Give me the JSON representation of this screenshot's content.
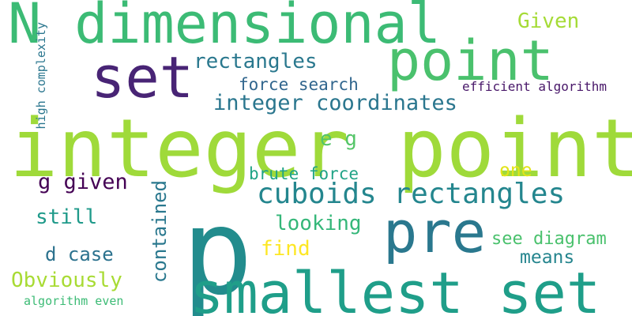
{
  "words": [
    {
      "text": "integer point",
      "color": "#9fda3a"
    },
    {
      "text": "N dimensional",
      "color": "#3cbb75"
    },
    {
      "text": "point",
      "color": "#4ac16d"
    },
    {
      "text": "set",
      "color": "#482475"
    },
    {
      "text": "p",
      "color": "#228c8d"
    },
    {
      "text": "smallest set",
      "color": "#1f9e89"
    },
    {
      "text": "pre",
      "color": "#2a788e"
    },
    {
      "text": "cuboids rectangles",
      "color": "#24868e"
    },
    {
      "text": "integer coordinates",
      "color": "#2a768e"
    },
    {
      "text": "rectangles",
      "color": "#2a788e"
    },
    {
      "text": "Given",
      "color": "#a5db36"
    },
    {
      "text": "force search",
      "color": "#31668e"
    },
    {
      "text": "efficient algorithm",
      "color": "#481769"
    },
    {
      "text": "high complexity",
      "color": "#2a768e"
    },
    {
      "text": "e g",
      "color": "#54c568"
    },
    {
      "text": "brute force",
      "color": "#20a386"
    },
    {
      "text": "one",
      "color": "#e2e418"
    },
    {
      "text": "g given",
      "color": "#440154"
    },
    {
      "text": "contained",
      "color": "#2a788e"
    },
    {
      "text": "looking",
      "color": "#35b779"
    },
    {
      "text": "still",
      "color": "#1f9a8a"
    },
    {
      "text": "find",
      "color": "#fde725"
    },
    {
      "text": "see diagram",
      "color": "#4ac16d"
    },
    {
      "text": "d case",
      "color": "#2c728e"
    },
    {
      "text": "means",
      "color": "#25858e"
    },
    {
      "text": "Obviously",
      "color": "#a8db34"
    },
    {
      "text": "algorithm even",
      "color": "#3cbb75"
    }
  ]
}
